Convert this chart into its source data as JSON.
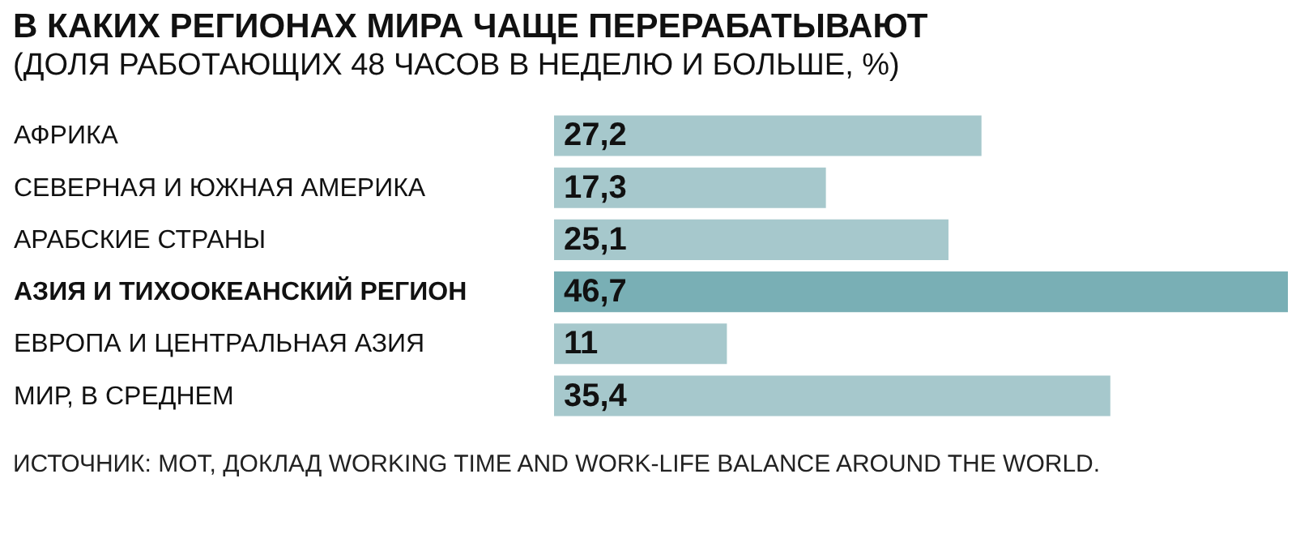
{
  "chart_data": {
    "type": "bar",
    "orientation": "horizontal",
    "title": "В КАКИХ РЕГИОНАХ МИРА ЧАЩЕ ПЕРЕРАБАТЫВАЮТ",
    "subtitle": "(ДОЛЯ РАБОТАЮЩИХ 48 ЧАСОВ В НЕДЕЛЮ И БОЛЬШЕ, %)",
    "categories": [
      "АФРИКА",
      "СЕВЕРНАЯ И ЮЖНАЯ АМЕРИКА",
      "АРАБСКИЕ СТРАНЫ",
      "АЗИЯ И ТИХООКЕАНСКИЙ РЕГИОН",
      "ЕВРОПА И ЦЕНТРАЛЬНАЯ АЗИЯ",
      "МИР, В СРЕДНЕМ"
    ],
    "values": [
      27.2,
      17.3,
      25.1,
      46.7,
      11,
      35.4
    ],
    "value_labels": [
      "27,2",
      "17,3",
      "25,1",
      "46,7",
      "11",
      "35,4"
    ],
    "colors": [
      "#a6c8cc",
      "#a6c8cc",
      "#a6c8cc",
      "#79afb5",
      "#a6c8cc",
      "#a6c8cc"
    ],
    "annotations": [
      "ИСТОЧНИК: МОТ, ДОКЛАД WORKING TIME AND WORK-LIFE BALANCE AROUND THE WORLD."
    ]
  }
}
